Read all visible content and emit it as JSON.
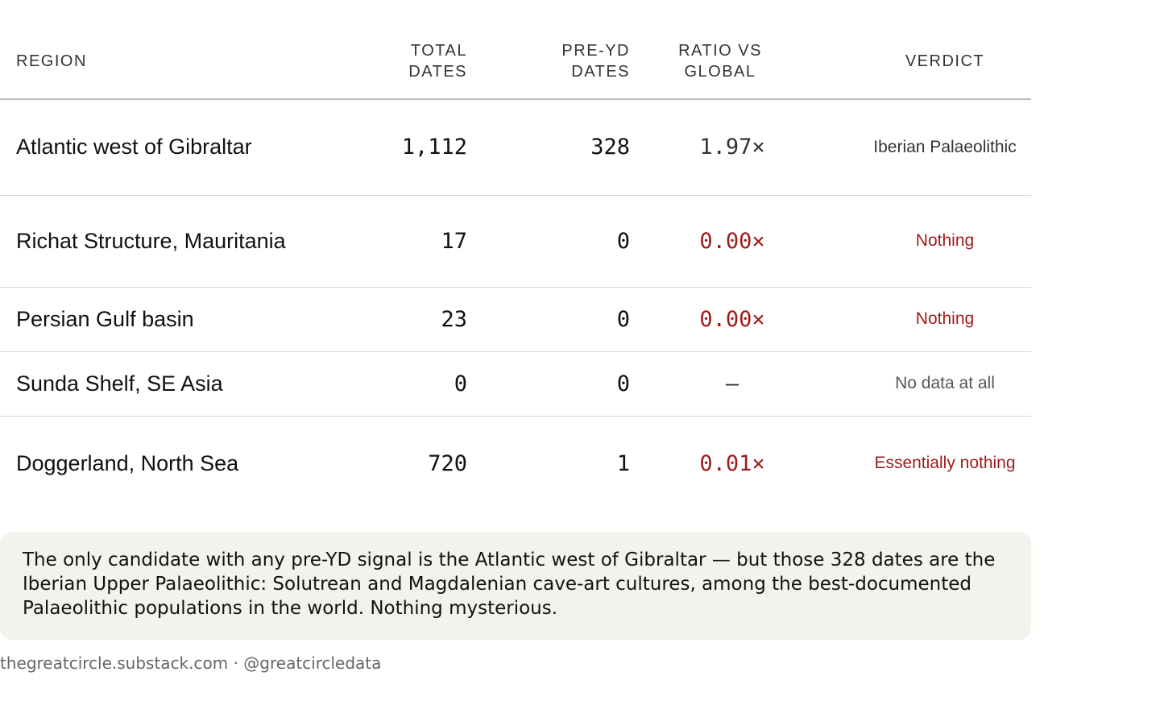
{
  "table": {
    "headers": {
      "region": "REGION",
      "total": [
        "TOTAL",
        "DATES"
      ],
      "preyd": [
        "PRE-YD",
        "DATES"
      ],
      "ratio": [
        "RATIO VS",
        "GLOBAL"
      ],
      "verdict": "VERDICT"
    },
    "rows": [
      {
        "region": "Atlantic west of Gibraltar",
        "total": "1,112",
        "preyd": "328",
        "ratio": "1.97×",
        "verdict": "Iberian Palaeolithic",
        "tone": "neutral"
      },
      {
        "region": "Richat Structure, Mauritania",
        "total": "17",
        "preyd": "0",
        "ratio": "0.00×",
        "verdict": "Nothing",
        "tone": "red"
      },
      {
        "region": "Persian Gulf basin",
        "total": "23",
        "preyd": "0",
        "ratio": "0.00×",
        "verdict": "Nothing",
        "tone": "red"
      },
      {
        "region": "Sunda Shelf, SE Asia",
        "total": "0",
        "preyd": "0",
        "ratio": "—",
        "verdict": "No data at all",
        "tone": "grey"
      },
      {
        "region": "Doggerland, North Sea",
        "total": "720",
        "preyd": "1",
        "ratio": "0.01×",
        "verdict": "Essentially nothing",
        "tone": "red"
      }
    ]
  },
  "note": "The only candidate with any pre-YD signal is the Atlantic west of Gibraltar — but those 328 dates are the Iberian Upper Palaeolithic: Solutrean and Magdalenian cave-art cultures, among the best-documented Palaeolithic populations in the world. Nothing mysterious.",
  "footer": "thegreatcircle.substack.com · @greatcircledata",
  "colors": {
    "accent_red": "#9e1b1b",
    "grey_text": "#555555",
    "note_bg": "#f3f3ee"
  }
}
